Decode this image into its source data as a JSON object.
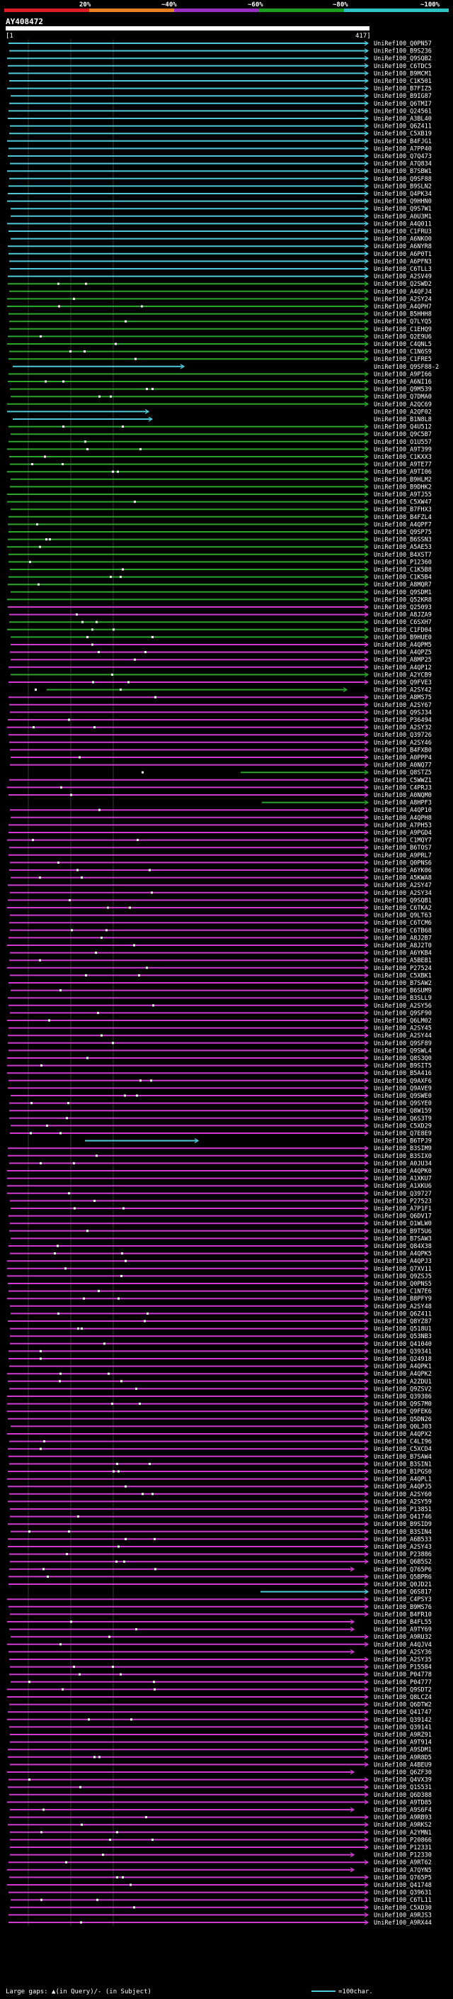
{
  "scale": {
    "labels": [
      "20%",
      "~40%",
      "~60%",
      "~80%",
      "~100%"
    ],
    "colors": [
      "#dd1d23",
      "#e87e22",
      "#9a2ec2",
      "#1d9d1d",
      "#2ec4c4"
    ]
  },
  "query": {
    "id": "AY408472",
    "start": "[1",
    "end": "417]"
  },
  "colors": {
    "cyan": "#4fc8d9",
    "green": "#2aa62a",
    "magenta": "#d03ad0",
    "purple": "#7e36c0",
    "background": "#000000"
  },
  "rows": [
    {
      "id": "UniRef100_Q0PN57",
      "c": "cyan"
    },
    {
      "id": "UniRef100_B9S236",
      "c": "cyan"
    },
    {
      "id": "UniRef100_Q9SQB2",
      "c": "cyan"
    },
    {
      "id": "UniRef100_C6TDC5",
      "c": "cyan"
    },
    {
      "id": "UniRef100_B9MCM1",
      "c": "cyan"
    },
    {
      "id": "UniRef100_C1K501",
      "c": "cyan"
    },
    {
      "id": "UniRef100_B7FIZ5",
      "c": "cyan"
    },
    {
      "id": "UniRef100_B9IG87",
      "c": "cyan"
    },
    {
      "id": "UniRef100_Q6TMI7",
      "c": "cyan"
    },
    {
      "id": "UniRef100_Q24561",
      "c": "cyan"
    },
    {
      "id": "UniRef100_A3BL40",
      "c": "cyan"
    },
    {
      "id": "UniRef100_Q6Z411",
      "c": "cyan"
    },
    {
      "id": "UniRef100_C5XB19",
      "c": "cyan"
    },
    {
      "id": "UniRef100_B4FJG1",
      "c": "cyan"
    },
    {
      "id": "UniRef100_A7PP40",
      "c": "cyan"
    },
    {
      "id": "UniRef100_Q7Q473",
      "c": "cyan"
    },
    {
      "id": "UniRef100_A7Q834",
      "c": "cyan"
    },
    {
      "id": "UniRef100_B7SBW1",
      "c": "cyan"
    },
    {
      "id": "UniRef100_Q9SF88",
      "c": "cyan"
    },
    {
      "id": "UniRef100_B9SLN2",
      "c": "cyan"
    },
    {
      "id": "UniRef100_Q4PK34",
      "c": "cyan"
    },
    {
      "id": "UniRef100_Q9HHN0",
      "c": "cyan"
    },
    {
      "id": "UniRef100_Q9S7W1",
      "c": "cyan"
    },
    {
      "id": "UniRef100_A0U3M1",
      "c": "cyan"
    },
    {
      "id": "UniRef100_A4Q011",
      "c": "cyan"
    },
    {
      "id": "UniRef100_C1FRU3",
      "c": "cyan"
    },
    {
      "id": "UniRef100_A6NKO0",
      "c": "cyan"
    },
    {
      "id": "UniRef100_A6NYR8",
      "c": "cyan"
    },
    {
      "id": "UniRef100_A6P0T1",
      "c": "cyan"
    },
    {
      "id": "UniRef100_A6PFN3",
      "c": "cyan"
    },
    {
      "id": "UniRef100_C6TLL3",
      "c": "cyan"
    },
    {
      "id": "UniRef100_A2SV49",
      "c": "cyan"
    },
    {
      "id": "UniRef100_Q2SWD2",
      "c": "green"
    },
    {
      "id": "UniRef100_A4QFJ4",
      "c": "green"
    },
    {
      "id": "UniRef100_A2SY24",
      "c": "green"
    },
    {
      "id": "UniRef100_A4QPH7",
      "c": "green"
    },
    {
      "id": "UniRef100_B5HHH8",
      "c": "green"
    },
    {
      "id": "UniRef100_Q7LYQ5",
      "c": "green"
    },
    {
      "id": "UniRef100_C1EHQ9",
      "c": "green"
    },
    {
      "id": "UniRef100_Q2E9U6",
      "c": "green"
    },
    {
      "id": "UniRef100_C4QNL5",
      "c": "green"
    },
    {
      "id": "UniRef100_C1N6S9",
      "c": "green"
    },
    {
      "id": "UniRef100_C1FRE5",
      "c": "green"
    },
    {
      "id": "UniRef100_Q9SF88-2",
      "c": "cyan"
    },
    {
      "id": "UniRef100_A9PI66",
      "c": "green"
    },
    {
      "id": "UniRef100_A6NI16",
      "c": "green"
    },
    {
      "id": "UniRef100_Q9M539",
      "c": "green"
    },
    {
      "id": "UniRef100_Q7DMA0",
      "c": "green"
    },
    {
      "id": "UniRef100_A2QC69",
      "c": "green"
    },
    {
      "id": "UniRef100_A2QF02",
      "c": "cyan"
    },
    {
      "id": "UniRef100_B1N8L8",
      "c": "cyan"
    },
    {
      "id": "UniRef100_Q4U512",
      "c": "green"
    },
    {
      "id": "UniRef100_Q9C5B7",
      "c": "green"
    },
    {
      "id": "UniRef100_O1U557",
      "c": "green"
    },
    {
      "id": "UniRef100_A9T399",
      "c": "green"
    },
    {
      "id": "UniRef100_C1KXX3",
      "c": "green"
    },
    {
      "id": "UniRef100_A9TE77",
      "c": "green"
    },
    {
      "id": "UniRef100_A9TI06",
      "c": "green"
    },
    {
      "id": "UniRef100_B9HLM2",
      "c": "green"
    },
    {
      "id": "UniRef100_B9DHK2",
      "c": "green"
    },
    {
      "id": "UniRef100_A9TJ55",
      "c": "green"
    },
    {
      "id": "UniRef100_C5XW47",
      "c": "green"
    },
    {
      "id": "UniRef100_B7FHX3",
      "c": "green"
    },
    {
      "id": "UniRef100_B4FZL4",
      "c": "green"
    },
    {
      "id": "UniRef100_A4QPF7",
      "c": "green"
    },
    {
      "id": "UniRef100_Q9SP75",
      "c": "green"
    },
    {
      "id": "UniRef100_B6SSN3",
      "c": "green"
    },
    {
      "id": "UniRef100_A5AE53",
      "c": "green"
    },
    {
      "id": "UniRef100_B4XST7",
      "c": "green"
    },
    {
      "id": "UniRef100_P12360",
      "c": "green"
    },
    {
      "id": "UniRef100_C1K5B8",
      "c": "green"
    },
    {
      "id": "UniRef100_C1K5B4",
      "c": "green"
    },
    {
      "id": "UniRef100_A8MQR7",
      "c": "green"
    },
    {
      "id": "UniRef100_Q9SDM1",
      "c": "green"
    },
    {
      "id": "UniRef100_Q52KR8",
      "c": "green"
    },
    {
      "id": "UniRef100_Q25093",
      "c": "magenta"
    },
    {
      "id": "UniRef100_A8JZA9",
      "c": "magenta"
    },
    {
      "id": "UniRef100_C6SXH7",
      "c": "green"
    },
    {
      "id": "UniRef100_C1FD04",
      "c": "green"
    },
    {
      "id": "UniRef100_B9HUE0",
      "c": "green"
    },
    {
      "id": "UniRef100_A4QPM5",
      "c": "magenta"
    },
    {
      "id": "UniRef100_A4QPZ5",
      "c": "magenta"
    },
    {
      "id": "UniRef100_A8MP25",
      "c": "magenta"
    },
    {
      "id": "UniRef100_A4QP12",
      "c": "magenta"
    },
    {
      "id": "UniRef100_A2YCB9",
      "c": "green"
    },
    {
      "id": "UniRef100_Q9FVE3",
      "c": "magenta"
    },
    {
      "id": "UniRef100_A2SY42",
      "c": "green"
    },
    {
      "id": "UniRef100_A8MS75",
      "c": "magenta"
    },
    {
      "id": "UniRef100_A2SY67",
      "c": "magenta"
    },
    {
      "id": "UniRef100_Q9SJ34",
      "c": "magenta"
    },
    {
      "id": "UniRef100_P36494",
      "c": "magenta"
    },
    {
      "id": "UniRef100_A2SY32",
      "c": "magenta"
    },
    {
      "id": "UniRef100_Q39726",
      "c": "magenta"
    },
    {
      "id": "UniRef100_A2SY46",
      "c": "magenta"
    },
    {
      "id": "UniRef100_B4FXB0",
      "c": "magenta"
    },
    {
      "id": "UniRef100_A0PPP4",
      "c": "magenta"
    },
    {
      "id": "UniRef100_A0NQ77",
      "c": "magenta"
    },
    {
      "id": "UniRef100_Q8STZ5",
      "c": "green"
    },
    {
      "id": "UniRef100_C5WWZ1",
      "c": "magenta"
    },
    {
      "id": "UniRef100_C4PRJ3",
      "c": "magenta"
    },
    {
      "id": "UniRef100_A0NQM0",
      "c": "magenta"
    },
    {
      "id": "UniRef100_A8HPF3",
      "c": "green"
    },
    {
      "id": "UniRef100_A4QP10",
      "c": "magenta"
    },
    {
      "id": "UniRef100_A4QPH8",
      "c": "magenta"
    },
    {
      "id": "UniRef100_A7PH53",
      "c": "magenta"
    },
    {
      "id": "UniRef100_A9PGD4",
      "c": "magenta"
    },
    {
      "id": "UniRef100_C1MQY7",
      "c": "magenta"
    },
    {
      "id": "UniRef100_B6TOS7",
      "c": "magenta"
    },
    {
      "id": "UniRef100_A9PRL7",
      "c": "magenta"
    },
    {
      "id": "UniRef100_Q0PNS6",
      "c": "magenta"
    },
    {
      "id": "UniRef100_A6YK06",
      "c": "magenta"
    },
    {
      "id": "UniRef100_A5KWA8",
      "c": "magenta"
    },
    {
      "id": "UniRef100_A2SY47",
      "c": "magenta"
    },
    {
      "id": "UniRef100_A2SY34",
      "c": "magenta"
    },
    {
      "id": "UniRef100_Q9SQB1",
      "c": "magenta"
    },
    {
      "id": "UniRef100_C6TKA2",
      "c": "magenta"
    },
    {
      "id": "UniRef100_Q9LT63",
      "c": "magenta"
    },
    {
      "id": "UniRef100_C6TCM6",
      "c": "magenta"
    },
    {
      "id": "UniRef100_C6TB68",
      "c": "magenta"
    },
    {
      "id": "UniRef100_A8J2B7",
      "c": "magenta"
    },
    {
      "id": "UniRef100_A8J2T0",
      "c": "magenta"
    },
    {
      "id": "UniRef100_A6YKB4",
      "c": "magenta"
    },
    {
      "id": "UniRef100_A5BEB1",
      "c": "magenta"
    },
    {
      "id": "UniRef100_P27524",
      "c": "magenta"
    },
    {
      "id": "UniRef100_C5XBK1",
      "c": "magenta"
    },
    {
      "id": "UniRef100_B7SAW2",
      "c": "magenta"
    },
    {
      "id": "UniRef100_B6SUM9",
      "c": "magenta"
    },
    {
      "id": "UniRef100_B3SLL9",
      "c": "magenta"
    },
    {
      "id": "UniRef100_A2SY56",
      "c": "magenta"
    },
    {
      "id": "UniRef100_Q9SF90",
      "c": "magenta"
    },
    {
      "id": "UniRef100_Q6LM02",
      "c": "magenta"
    },
    {
      "id": "UniRef100_A2SY45",
      "c": "magenta"
    },
    {
      "id": "UniRef100_A2SY44",
      "c": "magenta"
    },
    {
      "id": "UniRef100_Q9SF89",
      "c": "magenta"
    },
    {
      "id": "UniRef100_Q9SWL4",
      "c": "magenta"
    },
    {
      "id": "UniRef100_Q8S3Q0",
      "c": "magenta"
    },
    {
      "id": "UniRef100_B9SIT5",
      "c": "magenta"
    },
    {
      "id": "UniRef100_B5A416",
      "c": "magenta"
    },
    {
      "id": "UniRef100_Q9AXF6",
      "c": "magenta"
    },
    {
      "id": "UniRef100_Q9AVE9",
      "c": "magenta"
    },
    {
      "id": "UniRef100_Q9SWE0",
      "c": "magenta"
    },
    {
      "id": "UniRef100_Q9SYE0",
      "c": "magenta"
    },
    {
      "id": "UniRef100_Q8W159",
      "c": "magenta"
    },
    {
      "id": "UniRef100_Q6S3T9",
      "c": "magenta"
    },
    {
      "id": "UniRef100_C5XD29",
      "c": "magenta"
    },
    {
      "id": "UniRef100_Q7E8E9",
      "c": "magenta"
    },
    {
      "id": "UniRef100_B6TPJ9",
      "c": "cyan"
    },
    {
      "id": "UniRef100_B3SIM9",
      "c": "magenta"
    },
    {
      "id": "UniRef100_B3SIX0",
      "c": "magenta"
    },
    {
      "id": "UniRef100_A0JU34",
      "c": "magenta"
    },
    {
      "id": "UniRef100_A4QPK0",
      "c": "magenta"
    },
    {
      "id": "UniRef100_A1XKU7",
      "c": "magenta"
    },
    {
      "id": "UniRef100_A1XKU6",
      "c": "magenta"
    },
    {
      "id": "UniRef100_Q39727",
      "c": "magenta"
    },
    {
      "id": "UniRef100_P27523",
      "c": "magenta"
    },
    {
      "id": "UniRef100_A7P1F1",
      "c": "magenta"
    },
    {
      "id": "UniRef100_Q6DV17",
      "c": "magenta"
    },
    {
      "id": "UniRef100_O1WLW0",
      "c": "magenta"
    },
    {
      "id": "UniRef100_B9T5U6",
      "c": "magenta"
    },
    {
      "id": "UniRef100_B7SAW3",
      "c": "magenta"
    },
    {
      "id": "UniRef100_Q84X38",
      "c": "magenta"
    },
    {
      "id": "UniRef100_A4QPK5",
      "c": "magenta"
    },
    {
      "id": "UniRef100_A4QPJ3",
      "c": "magenta"
    },
    {
      "id": "UniRef100_Q7XV11",
      "c": "magenta"
    },
    {
      "id": "UniRef100_Q9ZSJ5",
      "c": "magenta"
    },
    {
      "id": "UniRef100_Q0PNS5",
      "c": "magenta"
    },
    {
      "id": "UniRef100_C1N7E6",
      "c": "magenta"
    },
    {
      "id": "UniRef100_B8PFY9",
      "c": "magenta"
    },
    {
      "id": "UniRef100_A2SY48",
      "c": "magenta"
    },
    {
      "id": "UniRef100_Q6Z411",
      "c": "magenta"
    },
    {
      "id": "UniRef100_Q8YZ87",
      "c": "magenta"
    },
    {
      "id": "UniRef100_Q518U1",
      "c": "magenta"
    },
    {
      "id": "UniRef100_Q53NB3",
      "c": "magenta"
    },
    {
      "id": "UniRef100_Q41040",
      "c": "magenta"
    },
    {
      "id": "UniRef100_Q39341",
      "c": "magenta"
    },
    {
      "id": "UniRef100_Q24918",
      "c": "magenta"
    },
    {
      "id": "UniRef100_A4QPK1",
      "c": "magenta"
    },
    {
      "id": "UniRef100_A4QPK2",
      "c": "magenta"
    },
    {
      "id": "UniRef100_A2ZDU1",
      "c": "magenta"
    },
    {
      "id": "UniRef100_Q9ZSV2",
      "c": "magenta"
    },
    {
      "id": "UniRef100_Q39386",
      "c": "magenta"
    },
    {
      "id": "UniRef100_Q9S7M0",
      "c": "magenta"
    },
    {
      "id": "UniRef100_Q9FEK6",
      "c": "magenta"
    },
    {
      "id": "UniRef100_Q5DN26",
      "c": "magenta"
    },
    {
      "id": "UniRef100_Q0LJ03",
      "c": "magenta"
    },
    {
      "id": "UniRef100_A4QPX2",
      "c": "magenta"
    },
    {
      "id": "UniRef100_C4LI96",
      "c": "magenta"
    },
    {
      "id": "UniRef100_C5XCD4",
      "c": "magenta"
    },
    {
      "id": "UniRef100_B7SAW4",
      "c": "magenta"
    },
    {
      "id": "UniRef100_B3SIN1",
      "c": "magenta"
    },
    {
      "id": "UniRef100_B1PGS0",
      "c": "magenta"
    },
    {
      "id": "UniRef100_A4QPL1",
      "c": "magenta"
    },
    {
      "id": "UniRef100_A4QPJ5",
      "c": "magenta"
    },
    {
      "id": "UniRef100_A2SY60",
      "c": "magenta"
    },
    {
      "id": "UniRef100_A2SY59",
      "c": "magenta"
    },
    {
      "id": "UniRef100_P13851",
      "c": "magenta"
    },
    {
      "id": "UniRef100_Q41746",
      "c": "magenta"
    },
    {
      "id": "UniRef100_B9SID9",
      "c": "magenta"
    },
    {
      "id": "UniRef100_B3SIN4",
      "c": "magenta"
    },
    {
      "id": "UniRef100_A6B533",
      "c": "magenta"
    },
    {
      "id": "UniRef100_A2SY43",
      "c": "magenta"
    },
    {
      "id": "UniRef100_P23886",
      "c": "magenta"
    },
    {
      "id": "UniRef100_Q6B5S2",
      "c": "magenta"
    },
    {
      "id": "UniRef100_Q765P6",
      "c": "magenta"
    },
    {
      "id": "UniRef100_Q5BPR6",
      "c": "magenta"
    },
    {
      "id": "UniRef100_Q0JD21",
      "c": "magenta"
    },
    {
      "id": "UniRef100_Q6S817",
      "c": "cyan"
    },
    {
      "id": "UniRef100_C4PSY3",
      "c": "magenta"
    },
    {
      "id": "UniRef100_B9MS76",
      "c": "magenta"
    },
    {
      "id": "UniRef100_B4FR10",
      "c": "magenta"
    },
    {
      "id": "UniRef100_B4FL55",
      "c": "magenta"
    },
    {
      "id": "UniRef100_A9TY69",
      "c": "magenta"
    },
    {
      "id": "UniRef100_A9RU32",
      "c": "magenta"
    },
    {
      "id": "UniRef100_A4QJV4",
      "c": "magenta"
    },
    {
      "id": "UniRef100_A2SY36",
      "c": "magenta"
    },
    {
      "id": "UniRef100_A2SY35",
      "c": "magenta"
    },
    {
      "id": "UniRef100_P15584",
      "c": "magenta"
    },
    {
      "id": "UniRef100_P04778",
      "c": "magenta"
    },
    {
      "id": "UniRef100_P04777",
      "c": "magenta"
    },
    {
      "id": "UniRef100_Q9SDT2",
      "c": "magenta"
    },
    {
      "id": "UniRef100_Q8LCZ4",
      "c": "magenta"
    },
    {
      "id": "UniRef100_Q6DTW2",
      "c": "magenta"
    },
    {
      "id": "UniRef100_Q41747",
      "c": "magenta"
    },
    {
      "id": "UniRef100_Q39142",
      "c": "magenta"
    },
    {
      "id": "UniRef100_Q39141",
      "c": "magenta"
    },
    {
      "id": "UniRef100_A9RZ91",
      "c": "magenta"
    },
    {
      "id": "UniRef100_A9T914",
      "c": "magenta"
    },
    {
      "id": "UniRef100_A9SDM1",
      "c": "magenta"
    },
    {
      "id": "UniRef100_A9R8D5",
      "c": "magenta"
    },
    {
      "id": "UniRef100_A4BEU9",
      "c": "magenta"
    },
    {
      "id": "UniRef100_Q6ZF30",
      "c": "magenta"
    },
    {
      "id": "UniRef100_Q4VX39",
      "c": "magenta"
    },
    {
      "id": "UniRef100_Q1S531",
      "c": "magenta"
    },
    {
      "id": "UniRef100_Q6D388",
      "c": "magenta"
    },
    {
      "id": "UniRef100_A9TD85",
      "c": "magenta"
    },
    {
      "id": "UniRef100_A9S6F4",
      "c": "magenta"
    },
    {
      "id": "UniRef100_A9RB93",
      "c": "magenta"
    },
    {
      "id": "UniRef100_A9RKS2",
      "c": "magenta"
    },
    {
      "id": "UniRef100_A2YMN1",
      "c": "magenta"
    },
    {
      "id": "UniRef100_P20866",
      "c": "magenta"
    },
    {
      "id": "UniRef100_P12331",
      "c": "magenta"
    },
    {
      "id": "UniRef100_P12330",
      "c": "magenta"
    },
    {
      "id": "UniRef100_A9RT62",
      "c": "magenta"
    },
    {
      "id": "UniRef100_A7QYN5",
      "c": "magenta"
    },
    {
      "id": "UniRef100_Q765P5",
      "c": "magenta"
    },
    {
      "id": "UniRef100_Q41748",
      "c": "magenta"
    },
    {
      "id": "UniRef100_Q39631",
      "c": "magenta"
    },
    {
      "id": "UniRef100_C6TL11",
      "c": "magenta"
    },
    {
      "id": "UniRef100_C5XD30",
      "c": "magenta"
    },
    {
      "id": "UniRef100_A9RJS3",
      "c": "magenta"
    },
    {
      "id": "UniRef100_A9RX44",
      "c": "magenta"
    }
  ],
  "footer": {
    "left": "Large gaps: ▲(in Query)/- (in Subject)",
    "right": "=100char."
  }
}
